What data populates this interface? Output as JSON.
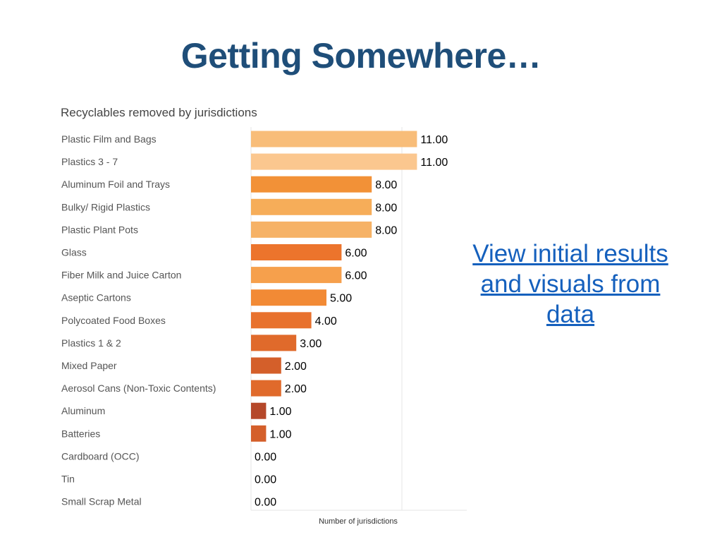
{
  "slide": {
    "title": "Getting Somewhere…",
    "link_text": "View initial results and visuals from data"
  },
  "colors": {
    "title": "#1f4e79",
    "link": "#1560bd",
    "bar_scale": [
      "#b5482a",
      "#d45f2a",
      "#e87533",
      "#f39a44",
      "#f6b266",
      "#fbc78f"
    ]
  },
  "chart_data": {
    "type": "bar",
    "orientation": "horizontal",
    "title": "Recyclables removed by jurisdictions",
    "xlabel": "Number of jurisdictions",
    "ylabel": "",
    "xlim": [
      0,
      15
    ],
    "value_format": "0.00",
    "grid": "vertical lines",
    "categories": [
      "Plastic Film and Bags",
      "Plastics 3 - 7",
      "Aluminum Foil and Trays",
      "Bulky/ Rigid Plastics",
      "Plastic Plant Pots",
      "Glass",
      "Fiber Milk and Juice Carton",
      "Aseptic Cartons",
      "Polycoated Food Boxes",
      "Plastics 1 & 2",
      "Mixed Paper",
      "Aerosol Cans (Non-Toxic Contents)",
      "Aluminum",
      "Batteries",
      "Cardboard (OCC)",
      "Tin",
      "Small Scrap Metal"
    ],
    "values": [
      11,
      11,
      8,
      8,
      8,
      6,
      6,
      5,
      4,
      3,
      2,
      2,
      1,
      1,
      0,
      0,
      0
    ],
    "value_labels": [
      "11.00",
      "11.00",
      "8.00",
      "8.00",
      "8.00",
      "6.00",
      "6.00",
      "5.00",
      "4.00",
      "3.00",
      "2.00",
      "2.00",
      "1.00",
      "1.00",
      "0.00",
      "0.00",
      "0.00"
    ],
    "bar_colors": [
      "#f8bd79",
      "#fbc78f",
      "#f29137",
      "#f6ad59",
      "#f6b266",
      "#ec742c",
      "#f6a04c",
      "#f28a35",
      "#e8712d",
      "#e06a2b",
      "#d45f2a",
      "#e06a2b",
      "#b5482a",
      "#d45f2a",
      null,
      null,
      null
    ]
  }
}
